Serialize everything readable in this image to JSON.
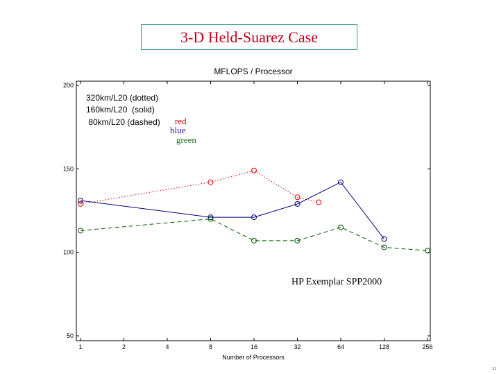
{
  "slide": {
    "title": "3-D Held-Suarez Case",
    "page_number": "31"
  },
  "chart_data": {
    "type": "line",
    "title": "MFLOPS / Processor",
    "xlabel": "Number of Processors",
    "ylabel": "",
    "x_scale": "log2",
    "x_ticks": [
      "1",
      "2",
      "4",
      "8",
      "16",
      "32",
      "64",
      "128",
      "256"
    ],
    "x_tick_values": [
      1,
      2,
      4,
      8,
      16,
      32,
      64,
      128,
      256
    ],
    "xlim": [
      1,
      256
    ],
    "y_ticks": [
      "50",
      "100",
      "150",
      "200"
    ],
    "y_tick_values": [
      50,
      100,
      150,
      200
    ],
    "ylim": [
      50,
      200
    ],
    "legend_lines": [
      "320km/L20 (dotted)",
      "160km/L20  (solid)",
      " 80km/L20 (dashed)"
    ],
    "color_notes": [
      {
        "text": "red",
        "color": "#cc0000"
      },
      {
        "text": "blue",
        "color": "#1a1aa0"
      },
      {
        "text": "green",
        "color": "#1a6a1a"
      }
    ],
    "annotation": "HP Exemplar SPP2000",
    "series": [
      {
        "style": "dotted",
        "color": "#dd0000",
        "x": [
          1,
          8,
          16,
          32,
          45
        ],
        "y": [
          129,
          142,
          149,
          133,
          130
        ]
      },
      {
        "style": "solid",
        "color": "#00007a",
        "x": [
          1,
          8,
          16,
          32,
          64,
          128
        ],
        "y": [
          131,
          121,
          121,
          129,
          142,
          108
        ]
      },
      {
        "style": "dashed",
        "color": "#005a00",
        "x": [
          1,
          8,
          16,
          32,
          64,
          128,
          256
        ],
        "y": [
          113,
          120,
          107,
          107,
          115,
          103,
          101
        ]
      }
    ]
  }
}
